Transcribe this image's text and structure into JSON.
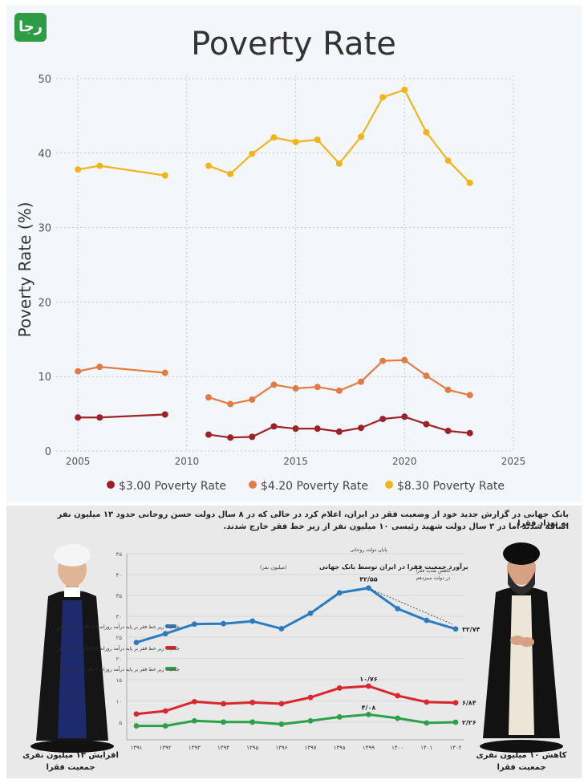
{
  "logo": {
    "text": "رجا"
  },
  "chart_data": [
    {
      "type": "line",
      "title": "Poverty Rate",
      "xlabel": "",
      "ylabel": "Poverty Rate (%)",
      "xlim": [
        2004,
        2025
      ],
      "ylim": [
        0,
        50
      ],
      "xticks": [
        "2005",
        "2010",
        "2015",
        "2020",
        "2025"
      ],
      "yticks": [
        "0",
        "10",
        "20",
        "30",
        "40",
        "50"
      ],
      "grid": true,
      "legend_position": "bottom",
      "series": [
        {
          "name": "$3.00 Poverty Rate",
          "color": "#9b2226",
          "points": [
            [
              2005,
              4.5
            ],
            [
              2006,
              4.5
            ],
            [
              2009,
              4.9
            ],
            null,
            [
              2011,
              2.2
            ],
            [
              2012,
              1.8
            ],
            [
              2013,
              1.9
            ],
            [
              2014,
              3.3
            ],
            [
              2015,
              3.0
            ],
            [
              2016,
              3.0
            ],
            [
              2017,
              2.6
            ],
            [
              2018,
              3.1
            ],
            [
              2019,
              4.3
            ],
            [
              2020,
              4.6
            ],
            [
              2021,
              3.6
            ],
            [
              2022,
              2.7
            ],
            [
              2023,
              2.4
            ]
          ]
        },
        {
          "name": "$4.20 Poverty Rate",
          "color": "#e07b45",
          "points": [
            [
              2005,
              10.7
            ],
            [
              2006,
              11.3
            ],
            [
              2009,
              10.5
            ],
            null,
            [
              2011,
              7.2
            ],
            [
              2012,
              6.3
            ],
            [
              2013,
              6.9
            ],
            [
              2014,
              8.9
            ],
            [
              2015,
              8.4
            ],
            [
              2016,
              8.6
            ],
            [
              2017,
              8.1
            ],
            [
              2018,
              9.3
            ],
            [
              2019,
              12.1
            ],
            [
              2020,
              12.2
            ],
            [
              2021,
              10.1
            ],
            [
              2022,
              8.2
            ],
            [
              2023,
              7.5
            ]
          ]
        },
        {
          "name": "$8.30 Poverty Rate",
          "color": "#f2b419",
          "points": [
            [
              2005,
              37.8
            ],
            [
              2006,
              38.3
            ],
            [
              2009,
              37.0
            ],
            null,
            [
              2011,
              38.3
            ],
            [
              2012,
              37.2
            ],
            [
              2013,
              39.9
            ],
            [
              2014,
              42.1
            ],
            [
              2015,
              41.5
            ],
            [
              2016,
              41.8
            ],
            [
              2017,
              38.6
            ],
            [
              2018,
              42.2
            ],
            [
              2019,
              47.5
            ],
            [
              2020,
              48.5
            ],
            [
              2021,
              42.8
            ],
            [
              2022,
              39.0
            ],
            [
              2023,
              36.0
            ]
          ]
        }
      ]
    },
    {
      "type": "line",
      "title": "برآورد جمعیت فقرا در ایران توسط بانک جهانی",
      "subtitle": "(میلیون نفر)",
      "categories": [
        "۱۳۹۱",
        "۱۳۹۲",
        "۱۳۹۳",
        "۱۳۹۴",
        "۱۳۹۵",
        "۱۳۹۶",
        "۱۳۹۷",
        "۱۳۹۸",
        "۱۳۹۹",
        "۱۴۰۰",
        "۱۴۰۱",
        "۱۴۰۲"
      ],
      "yticks_top": [
        "۴۵",
        "۴۰",
        "۳۵",
        "۳۰"
      ],
      "yticks_bottom": [
        "۲۵",
        "۲۰",
        "۱۵",
        "۱۰",
        "۵"
      ],
      "series": [
        {
          "name": "جمعیت زیر خط فقر بر پایه درآمد روزانه ۸.۳ دلار برای هر نفر",
          "color": "#2b7bc0",
          "values": [
            29.5,
            31.6,
            33.9,
            34.0,
            34.6,
            32.8,
            36.5,
            41.4,
            42.55,
            37.6,
            34.8,
            32.74
          ]
        },
        {
          "name": "جمعیت زیر خط فقر بر پایه درآمد روزانه ۴.۲ دلار برای هر نفر",
          "color": "#d9272e",
          "values": [
            4.2,
            4.9,
            7.1,
            6.6,
            6.9,
            6.6,
            8.1,
            10.3,
            10.76,
            8.5,
            7.0,
            6.84
          ]
        },
        {
          "name": "جمعیت زیر خط فقر بر پایه درآمد روزانه ۳ دلار برای هر نفر",
          "color": "#2aa14a",
          "values": [
            1.4,
            1.4,
            2.6,
            2.3,
            2.3,
            1.8,
            2.6,
            3.5,
            4.08,
            3.2,
            2.1,
            2.26
          ]
        }
      ],
      "value_labels": {
        "blue_peak": "۴۲/۵۵",
        "blue_end": "۳۲/۷۴",
        "red_peak": "۱۰/۷۶",
        "red_end": "۶/۸۴",
        "green_peak": "۴/۰۸",
        "green_end": "۲/۲۶"
      },
      "annotations": {
        "end_rouhani": "پایان دولت روحانی",
        "decrease_l1": "کاهش شدید فقرا",
        "decrease_l2": "در دولت سیزدهم"
      }
    }
  ],
  "infographic": {
    "header_line1": "بانک جهانی در گزارش جدید خود از وضعیت فقر در ایران، اعلام کرد در حالی که در ۸ سال دولت حسن روحانی حدود ۱۳ میلیون نفر به تعداد فقرا",
    "header_line2": "اضافه شدند اما در ۳ سال دولت شهید رئیسی ۱۰ میلیون نفر از زیر خط فقر خارج شدند.",
    "left_caption_l1": "افزایش ۱۳ میلیون نفری",
    "left_caption_l2": "جمعیت فقرا",
    "right_caption_l1": "کاهش ۱۰ میلیون نفری",
    "right_caption_l2": "جمعیت فقرا"
  }
}
